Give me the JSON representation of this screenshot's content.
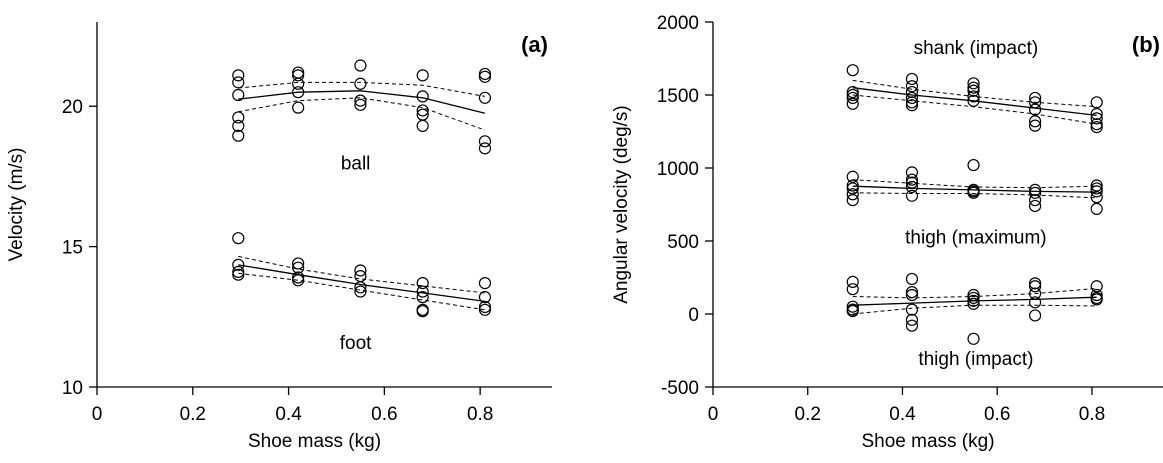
{
  "chart_data": [
    {
      "type": "scatter",
      "panel_label": "(a)",
      "xlabel": "Shoe mass (kg)",
      "ylabel": "Velocity (m/s)",
      "xlim": [
        0,
        0.95
      ],
      "ylim": [
        10,
        23
      ],
      "xticks": [
        0,
        0.2,
        0.4,
        0.6,
        0.8
      ],
      "xtick_labels": [
        "0",
        "0.2",
        "0.4",
        "0.6",
        "0.8"
      ],
      "yticks": [
        10,
        15,
        20
      ],
      "ytick_labels": [
        "10",
        "15",
        "20"
      ],
      "grid": false,
      "legend": "none",
      "annotations": [
        {
          "text": "ball",
          "x": 0.54,
          "y": 18.0
        },
        {
          "text": "foot",
          "x": 0.54,
          "y": 11.6
        }
      ],
      "series": [
        {
          "points": [
            [
              0.295,
              21.1
            ],
            [
              0.295,
              20.85
            ],
            [
              0.295,
              20.4
            ],
            [
              0.295,
              19.6
            ],
            [
              0.295,
              19.3
            ],
            [
              0.295,
              18.95
            ],
            [
              0.42,
              21.2
            ],
            [
              0.42,
              21.1
            ],
            [
              0.42,
              20.8
            ],
            [
              0.42,
              20.5
            ],
            [
              0.42,
              19.95
            ],
            [
              0.55,
              21.45
            ],
            [
              0.55,
              20.8
            ],
            [
              0.55,
              20.2
            ],
            [
              0.55,
              20.05
            ],
            [
              0.68,
              21.1
            ],
            [
              0.68,
              20.35
            ],
            [
              0.68,
              19.85
            ],
            [
              0.68,
              19.7
            ],
            [
              0.68,
              19.3
            ],
            [
              0.81,
              21.15
            ],
            [
              0.81,
              21.05
            ],
            [
              0.81,
              20.3
            ],
            [
              0.81,
              18.75
            ],
            [
              0.81,
              18.5
            ]
          ],
          "fit_x": [
            0.295,
            0.42,
            0.55,
            0.68,
            0.81
          ],
          "fit": [
            20.25,
            20.5,
            20.55,
            20.3,
            19.75
          ],
          "ci_upper": [
            20.65,
            20.85,
            20.85,
            20.75,
            20.35
          ],
          "ci_lower": [
            19.8,
            20.2,
            20.3,
            19.95,
            19.15
          ]
        },
        {
          "points": [
            [
              0.295,
              15.3
            ],
            [
              0.295,
              14.35
            ],
            [
              0.295,
              14.1
            ],
            [
              0.295,
              14.0
            ],
            [
              0.42,
              14.4
            ],
            [
              0.42,
              14.25
            ],
            [
              0.42,
              13.9
            ],
            [
              0.42,
              13.8
            ],
            [
              0.55,
              14.15
            ],
            [
              0.55,
              13.95
            ],
            [
              0.55,
              13.55
            ],
            [
              0.55,
              13.4
            ],
            [
              0.68,
              13.7
            ],
            [
              0.68,
              13.4
            ],
            [
              0.68,
              13.2
            ],
            [
              0.68,
              12.75
            ],
            [
              0.68,
              12.7
            ],
            [
              0.81,
              13.7
            ],
            [
              0.81,
              13.2
            ],
            [
              0.81,
              12.85
            ],
            [
              0.81,
              12.75
            ]
          ],
          "fit_x": [
            0.295,
            0.42,
            0.55,
            0.68,
            0.81
          ],
          "fit": [
            14.35,
            14.0,
            13.65,
            13.35,
            13.05
          ],
          "ci_upper": [
            14.65,
            14.2,
            13.85,
            13.6,
            13.35
          ],
          "ci_lower": [
            14.05,
            13.8,
            13.45,
            13.1,
            12.75
          ]
        }
      ]
    },
    {
      "type": "scatter",
      "panel_label": "(b)",
      "xlabel": "Shoe mass (kg)",
      "ylabel": "Angular velocity (deg/s)",
      "xlim": [
        0,
        0.95
      ],
      "ylim": [
        -500,
        2000
      ],
      "xticks": [
        0,
        0.2,
        0.4,
        0.6,
        0.8
      ],
      "xtick_labels": [
        "0",
        "0.2",
        "0.4",
        "0.6",
        "0.8"
      ],
      "yticks": [
        -500,
        0,
        500,
        1000,
        1500,
        2000
      ],
      "ytick_labels": [
        "-500",
        "0",
        "500",
        "1000",
        "1500",
        "2000"
      ],
      "grid": false,
      "legend": "none",
      "annotations": [
        {
          "text": "shank (impact)",
          "x": 0.555,
          "y": 1830
        },
        {
          "text": "thigh (maximum)",
          "x": 0.555,
          "y": 530
        },
        {
          "text": "thigh (impact)",
          "x": 0.555,
          "y": -300
        }
      ],
      "series": [
        {
          "points": [
            [
              0.295,
              1670
            ],
            [
              0.295,
              1520
            ],
            [
              0.295,
              1500
            ],
            [
              0.295,
              1480
            ],
            [
              0.295,
              1440
            ],
            [
              0.42,
              1610
            ],
            [
              0.42,
              1560
            ],
            [
              0.42,
              1520
            ],
            [
              0.42,
              1480
            ],
            [
              0.42,
              1450
            ],
            [
              0.42,
              1430
            ],
            [
              0.55,
              1580
            ],
            [
              0.55,
              1550
            ],
            [
              0.55,
              1530
            ],
            [
              0.55,
              1490
            ],
            [
              0.55,
              1460
            ],
            [
              0.68,
              1480
            ],
            [
              0.68,
              1450
            ],
            [
              0.68,
              1400
            ],
            [
              0.68,
              1320
            ],
            [
              0.68,
              1290
            ],
            [
              0.81,
              1450
            ],
            [
              0.81,
              1370
            ],
            [
              0.81,
              1340
            ],
            [
              0.81,
              1300
            ],
            [
              0.81,
              1280
            ]
          ],
          "fit_x": [
            0.295,
            0.42,
            0.55,
            0.68,
            0.81
          ],
          "fit": [
            1550,
            1500,
            1460,
            1410,
            1360
          ],
          "ci_upper": [
            1600,
            1540,
            1490,
            1450,
            1420
          ],
          "ci_lower": [
            1500,
            1460,
            1420,
            1370,
            1300
          ]
        },
        {
          "points": [
            [
              0.295,
              940
            ],
            [
              0.295,
              880
            ],
            [
              0.295,
              860
            ],
            [
              0.295,
              820
            ],
            [
              0.295,
              780
            ],
            [
              0.42,
              970
            ],
            [
              0.42,
              920
            ],
            [
              0.42,
              900
            ],
            [
              0.42,
              870
            ],
            [
              0.42,
              810
            ],
            [
              0.55,
              1020
            ],
            [
              0.55,
              850
            ],
            [
              0.55,
              840
            ],
            [
              0.55,
              830
            ],
            [
              0.68,
              850
            ],
            [
              0.68,
              830
            ],
            [
              0.68,
              780
            ],
            [
              0.68,
              740
            ],
            [
              0.81,
              880
            ],
            [
              0.81,
              860
            ],
            [
              0.81,
              840
            ],
            [
              0.81,
              800
            ],
            [
              0.81,
              720
            ]
          ],
          "fit_x": [
            0.295,
            0.42,
            0.55,
            0.68,
            0.81
          ],
          "fit": [
            875,
            860,
            850,
            840,
            835
          ],
          "ci_upper": [
            920,
            895,
            870,
            865,
            875
          ],
          "ci_lower": [
            830,
            825,
            825,
            815,
            795
          ]
        },
        {
          "points": [
            [
              0.295,
              220
            ],
            [
              0.295,
              170
            ],
            [
              0.295,
              50
            ],
            [
              0.295,
              30
            ],
            [
              0.295,
              20
            ],
            [
              0.42,
              240
            ],
            [
              0.42,
              150
            ],
            [
              0.42,
              130
            ],
            [
              0.42,
              30
            ],
            [
              0.42,
              -40
            ],
            [
              0.42,
              -80
            ],
            [
              0.55,
              130
            ],
            [
              0.55,
              110
            ],
            [
              0.55,
              90
            ],
            [
              0.55,
              70
            ],
            [
              0.55,
              -170
            ],
            [
              0.68,
              210
            ],
            [
              0.68,
              190
            ],
            [
              0.68,
              140
            ],
            [
              0.68,
              80
            ],
            [
              0.68,
              -10
            ],
            [
              0.81,
              190
            ],
            [
              0.81,
              130
            ],
            [
              0.81,
              110
            ],
            [
              0.81,
              100
            ]
          ],
          "fit_x": [
            0.295,
            0.42,
            0.55,
            0.68,
            0.81
          ],
          "fit": [
            60,
            75,
            90,
            100,
            115
          ],
          "ci_upper": [
            120,
            110,
            120,
            140,
            175
          ],
          "ci_lower": [
            0,
            40,
            60,
            60,
            55
          ]
        }
      ]
    }
  ]
}
